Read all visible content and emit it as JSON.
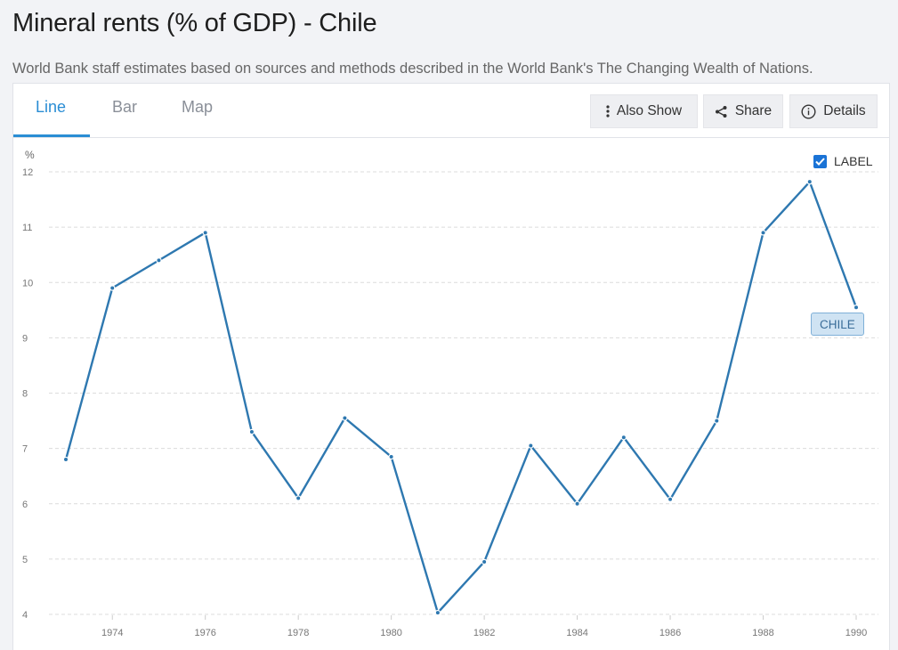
{
  "page": {
    "title": "Mineral rents (% of GDP) - Chile",
    "subtitle": "World Bank staff estimates based on sources and methods described in the World Bank's The Changing Wealth of Nations."
  },
  "tabs": [
    {
      "label": "Line",
      "active": true
    },
    {
      "label": "Bar",
      "active": false
    },
    {
      "label": "Map",
      "active": false
    }
  ],
  "toolbar": {
    "also_show_label": "Also Show",
    "share_label": "Share",
    "details_label": "Details"
  },
  "label_toggle": {
    "label": "LABEL",
    "checked": true
  },
  "colors": {
    "series": "#2e78b0",
    "accent": "#2a8dd4",
    "checkbox": "#1a73d6"
  },
  "chart_data": {
    "type": "line",
    "ylabel": "%",
    "ylim": [
      4,
      12
    ],
    "yticks": [
      4,
      5,
      6,
      7,
      8,
      9,
      10,
      11,
      12
    ],
    "xlim": [
      1973,
      1990
    ],
    "xticks": [
      1974,
      1976,
      1978,
      1980,
      1982,
      1984,
      1986,
      1988,
      1990
    ],
    "grid": true,
    "series": [
      {
        "name": "CHILE",
        "x": [
          1973,
          1974,
          1975,
          1976,
          1977,
          1978,
          1979,
          1980,
          1981,
          1982,
          1983,
          1984,
          1985,
          1986,
          1987,
          1988,
          1989,
          1990
        ],
        "values": [
          6.8,
          9.9,
          10.4,
          10.9,
          7.3,
          6.1,
          7.55,
          6.85,
          4.03,
          4.95,
          7.05,
          6.0,
          7.2,
          6.08,
          7.5,
          10.9,
          11.82,
          9.55
        ]
      }
    ]
  }
}
